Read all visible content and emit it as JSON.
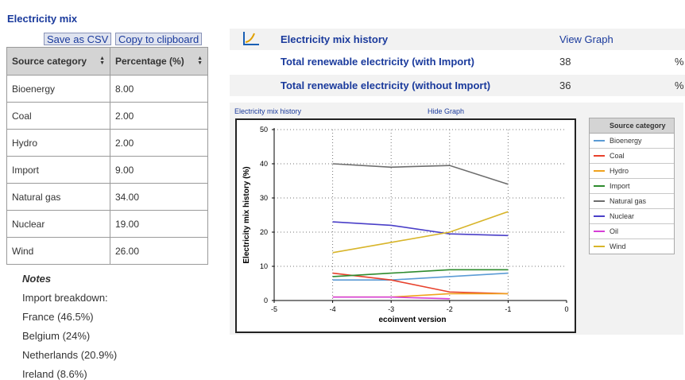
{
  "title": "Electricity mix",
  "buttons": {
    "save_csv": "Save as CSV",
    "copy_clipboard": "Copy to clipboard"
  },
  "table": {
    "headers": [
      "Source category",
      "Percentage (%)"
    ],
    "rows": [
      {
        "source": "Bioenergy",
        "percentage": "8.00"
      },
      {
        "source": "Coal",
        "percentage": "2.00"
      },
      {
        "source": "Hydro",
        "percentage": "2.00"
      },
      {
        "source": "Import",
        "percentage": "9.00"
      },
      {
        "source": "Natural gas",
        "percentage": "34.00"
      },
      {
        "source": "Nuclear",
        "percentage": "19.00"
      },
      {
        "source": "Wind",
        "percentage": "26.00"
      }
    ]
  },
  "notes": {
    "heading": "Notes",
    "lines": [
      "Import breakdown:",
      "France (46.5%)",
      "Belgium (24%)",
      "Netherlands (20.9%)",
      "Ireland (8.6%)"
    ]
  },
  "info": {
    "history_label": "Electricity mix history",
    "view_graph": "View Graph",
    "renewable_with_import_label": "Total renewable electricity (with Import)",
    "renewable_with_import_value": "38",
    "renewable_without_import_label": "Total renewable electricity (without Import)",
    "renewable_without_import_value": "36",
    "percent_sign": "%"
  },
  "icons": {
    "chart": "line-chart-icon",
    "sort": "sort-icon"
  },
  "graph": {
    "title_link": "Electricity mix history",
    "hide_link": "Hide Graph"
  },
  "chart_data": {
    "type": "line",
    "xlabel": "ecoinvent version",
    "ylabel": "Electricity mix history (%)",
    "xlim": [
      -5,
      0
    ],
    "ylim": [
      0,
      50
    ],
    "xticks": [
      -5,
      -4,
      -3,
      -2,
      -1,
      0
    ],
    "yticks": [
      0,
      10,
      20,
      30,
      40,
      50
    ],
    "grid": true,
    "legend_title": "Source category",
    "legend_position": "right",
    "series": [
      {
        "name": "Bioenergy",
        "color": "#5b9bd5",
        "x": [
          -4,
          -3,
          -2,
          -1
        ],
        "y": [
          6,
          6,
          7,
          8
        ]
      },
      {
        "name": "Coal",
        "color": "#e8412c",
        "x": [
          -4,
          -3,
          -2,
          -1
        ],
        "y": [
          8,
          6,
          2.5,
          2
        ]
      },
      {
        "name": "Hydro",
        "color": "#f0a21e",
        "x": [
          -4,
          -3,
          -2,
          -1
        ],
        "y": [
          1,
          1,
          2,
          2
        ]
      },
      {
        "name": "Import",
        "color": "#2e8b2e",
        "x": [
          -4,
          -3,
          -2,
          -1
        ],
        "y": [
          7,
          8,
          9,
          9
        ]
      },
      {
        "name": "Natural gas",
        "color": "#6d6d6d",
        "x": [
          -4,
          -3,
          -2,
          -1
        ],
        "y": [
          40,
          39,
          39.5,
          34
        ]
      },
      {
        "name": "Nuclear",
        "color": "#4a3fc8",
        "x": [
          -4,
          -3,
          -2,
          -1
        ],
        "y": [
          23,
          22,
          19.5,
          19
        ]
      },
      {
        "name": "Oil",
        "color": "#d63fd6",
        "x": [
          -4,
          -3,
          -2
        ],
        "y": [
          1,
          1,
          0.5
        ]
      },
      {
        "name": "Wind",
        "color": "#d8b52a",
        "x": [
          -4,
          -3,
          -2,
          -1
        ],
        "y": [
          14,
          17,
          20,
          26
        ]
      }
    ]
  }
}
